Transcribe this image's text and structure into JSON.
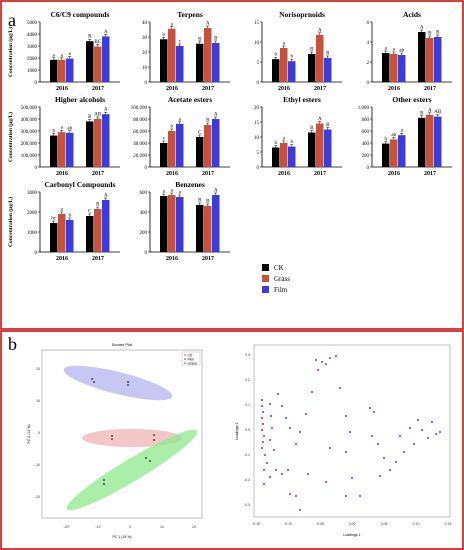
{
  "panel_labels": [
    "a",
    "b"
  ],
  "legend": {
    "items": [
      {
        "name": "CK",
        "color": "#000000"
      },
      {
        "name": "Grass",
        "color": "#c8503c"
      },
      {
        "name": "Film",
        "color": "#3c3cdc"
      }
    ]
  },
  "scores_plot": {
    "title": "Scores Plot",
    "xlabel": "PC 1 (14 %)",
    "ylabel": "PC 2 (12 %)",
    "xticks": [
      "-20",
      "-10",
      "0",
      "10",
      "20"
    ],
    "yticks": [
      "20",
      "10",
      "0",
      "-10",
      "-20"
    ],
    "legend": [
      "CK",
      "Film",
      "Grass"
    ]
  },
  "loadings_plot": {
    "xlabel": "Loadings 1",
    "ylabel": "Loadings 2",
    "xticks": [
      "-0.15",
      "-0.10",
      "-0.05",
      "0.00",
      "0.05",
      "0.10",
      "0.15"
    ],
    "yticks": [
      "0.3",
      "0.2",
      "0.1",
      "0.0",
      "-0.1",
      "-0.2",
      "-0.3"
    ]
  },
  "chart_data": [
    {
      "type": "bar",
      "title": "C6/C9 compounds",
      "ylabel": "Concentration (μg/L)",
      "categories": [
        "2016",
        "2017"
      ],
      "yticks": [
        "0",
        "1000",
        "2000",
        "3000",
        "4000",
        "5000"
      ],
      "ylim": [
        0,
        5000
      ],
      "series": [
        {
          "name": "CK",
          "values": [
            1850,
            3400
          ],
          "letters": [
            "a",
            "B"
          ]
        },
        {
          "name": "Grass",
          "values": [
            1850,
            2950
          ],
          "letters": [
            "a",
            "BC"
          ]
        },
        {
          "name": "Film",
          "values": [
            1950,
            3800
          ],
          "letters": [
            "a",
            "A"
          ]
        }
      ]
    },
    {
      "type": "bar",
      "title": "Terpens",
      "ylabel": "",
      "categories": [
        "2016",
        "2017"
      ],
      "yticks": [
        "0",
        "10",
        "20",
        "30",
        "40"
      ],
      "ylim": [
        0,
        40
      ],
      "series": [
        {
          "name": "CK",
          "values": [
            28.5,
            25.5
          ],
          "letters": [
            "b",
            "B"
          ]
        },
        {
          "name": "Grass",
          "values": [
            35.5,
            36
          ],
          "letters": [
            "a",
            "A"
          ]
        },
        {
          "name": "Film",
          "values": [
            24,
            26
          ],
          "letters": [
            "c",
            "B"
          ]
        }
      ]
    },
    {
      "type": "bar",
      "title": "Norisoprnoids",
      "ylabel": "",
      "categories": [
        "2016",
        "2017"
      ],
      "yticks": [
        "0",
        "5",
        "10",
        "15"
      ],
      "ylim": [
        0,
        15
      ],
      "series": [
        {
          "name": "CK",
          "values": [
            5.7,
            7
          ],
          "letters": [
            "b",
            "B"
          ]
        },
        {
          "name": "Grass",
          "values": [
            8.5,
            11.8
          ],
          "letters": [
            "a",
            "A"
          ]
        },
        {
          "name": "Film",
          "values": [
            5.2,
            6
          ],
          "letters": [
            "b",
            "B"
          ]
        }
      ]
    },
    {
      "type": "bar",
      "title": "Acids",
      "ylabel": "",
      "categories": [
        "2016",
        "2017"
      ],
      "yticks": [
        "0",
        "2",
        "4",
        "6"
      ],
      "ylim": [
        0,
        6
      ],
      "series": [
        {
          "name": "CK",
          "values": [
            2.9,
            5
          ],
          "letters": [
            "a",
            "A"
          ]
        },
        {
          "name": "Grass",
          "values": [
            2.8,
            4.4
          ],
          "letters": [
            "a",
            "B"
          ]
        },
        {
          "name": "Film",
          "values": [
            2.7,
            4.5
          ],
          "letters": [
            "ab",
            "B"
          ]
        }
      ]
    },
    {
      "type": "bar",
      "title": "Higher alcohols",
      "ylabel": "Concentration (μg/L)",
      "categories": [
        "2016",
        "2017"
      ],
      "yticks": [
        "0",
        "100,000",
        "200,000",
        "300,000",
        "400,000",
        "500,000"
      ],
      "ylim": [
        0,
        500000
      ],
      "series": [
        {
          "name": "CK",
          "values": [
            262000,
            380000
          ],
          "letters": [
            "b",
            "B"
          ]
        },
        {
          "name": "Grass",
          "values": [
            290000,
            400000
          ],
          "letters": [
            "a",
            "AB"
          ]
        },
        {
          "name": "Film",
          "values": [
            285000,
            440000
          ],
          "letters": [
            "ab",
            "A"
          ]
        }
      ]
    },
    {
      "type": "bar",
      "title": "Acetate esters",
      "ylabel": "",
      "categories": [
        "2016",
        "2017"
      ],
      "yticks": [
        "0",
        "20,000",
        "40,000",
        "60,000",
        "80,000",
        "100,000"
      ],
      "ylim": [
        0,
        100000
      ],
      "series": [
        {
          "name": "CK",
          "values": [
            40000,
            50000
          ],
          "letters": [
            "c",
            "C"
          ]
        },
        {
          "name": "Grass",
          "values": [
            60000,
            70000
          ],
          "letters": [
            "b",
            "B"
          ]
        },
        {
          "name": "Film",
          "values": [
            72000,
            80000
          ],
          "letters": [
            "a",
            "A"
          ]
        }
      ]
    },
    {
      "type": "bar",
      "title": "Ethyl esters",
      "ylabel": "",
      "categories": [
        "2016",
        "2017"
      ],
      "yticks": [
        "0",
        "5",
        "10",
        "15",
        "20"
      ],
      "ylim": [
        0,
        20
      ],
      "series": [
        {
          "name": "CK",
          "values": [
            6.5,
            11.5
          ],
          "letters": [
            "b",
            "B"
          ]
        },
        {
          "name": "Grass",
          "values": [
            8,
            14.5
          ],
          "letters": [
            "a",
            "A"
          ]
        },
        {
          "name": "Film",
          "values": [
            6.8,
            12.5
          ],
          "letters": [
            "b",
            "B"
          ]
        }
      ]
    },
    {
      "type": "bar",
      "title": "Other esters",
      "ylabel": "",
      "categories": [
        "2016",
        "2017"
      ],
      "yticks": [
        "0",
        "200",
        "400",
        "600",
        "800",
        "1,000"
      ],
      "ylim": [
        0,
        1000
      ],
      "series": [
        {
          "name": "CK",
          "values": [
            390,
            820
          ],
          "letters": [
            "b",
            "B"
          ]
        },
        {
          "name": "Grass",
          "values": [
            460,
            870
          ],
          "letters": [
            "ab",
            "A"
          ]
        },
        {
          "name": "Film",
          "values": [
            530,
            840
          ],
          "letters": [
            "a",
            "AB"
          ]
        }
      ]
    },
    {
      "type": "bar",
      "title": "Carbonyl Compounds",
      "ylabel": "Concentration (μg/L)",
      "categories": [
        "2016",
        "2017"
      ],
      "yticks": [
        "0",
        "1000",
        "2000",
        "3000"
      ],
      "ylim": [
        0,
        3000
      ],
      "series": [
        {
          "name": "CK",
          "values": [
            1450,
            1800
          ],
          "letters": [
            "bc",
            "C"
          ]
        },
        {
          "name": "Grass",
          "values": [
            1900,
            2150
          ],
          "letters": [
            "a",
            "B"
          ]
        },
        {
          "name": "Film",
          "values": [
            1600,
            2600
          ],
          "letters": [
            "b",
            "A"
          ]
        }
      ]
    },
    {
      "type": "bar",
      "title": "Benzenes",
      "ylabel": "",
      "categories": [
        "2016",
        "2017"
      ],
      "yticks": [
        "0",
        "200",
        "400",
        "600"
      ],
      "ylim": [
        0,
        600
      ],
      "series": [
        {
          "name": "CK",
          "values": [
            560,
            470
          ],
          "letters": [
            "a",
            "B"
          ]
        },
        {
          "name": "Grass",
          "values": [
            570,
            460
          ],
          "letters": [
            "a",
            "B"
          ]
        },
        {
          "name": "Film",
          "values": [
            550,
            570
          ],
          "letters": [
            "a",
            "A"
          ]
        }
      ]
    }
  ]
}
